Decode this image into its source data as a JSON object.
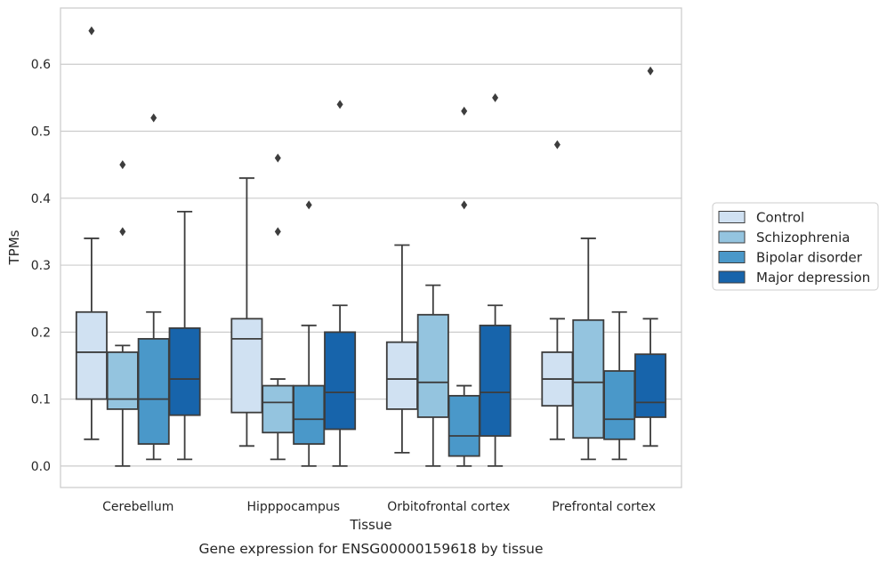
{
  "caption": "Gene expression for ENSG00000159618 by tissue",
  "chart_data": {
    "type": "box",
    "xlabel": "Tissue",
    "ylabel": "TPMs",
    "ylim": [
      -0.032,
      0.684
    ],
    "yticks": [
      0.0,
      0.1,
      0.2,
      0.3,
      0.4,
      0.5,
      0.6
    ],
    "ytick_labels": [
      "0.0",
      "0.1",
      "0.2",
      "0.3",
      "0.4",
      "0.5",
      "0.6"
    ],
    "grid": true,
    "legend_position": "right",
    "categories": [
      "Cerebellum",
      "Hipppocampus",
      "Orbitofrontal cortex",
      "Prefrontal cortex"
    ],
    "series": [
      {
        "name": "Control",
        "color": "#d0e1f2",
        "boxes": [
          {
            "whislo": 0.04,
            "q1": 0.1,
            "med": 0.17,
            "q3": 0.23,
            "whishi": 0.34,
            "fliers": [
              0.65
            ]
          },
          {
            "whislo": 0.03,
            "q1": 0.08,
            "med": 0.19,
            "q3": 0.22,
            "whishi": 0.43,
            "fliers": []
          },
          {
            "whislo": 0.02,
            "q1": 0.085,
            "med": 0.13,
            "q3": 0.185,
            "whishi": 0.33,
            "fliers": []
          },
          {
            "whislo": 0.04,
            "q1": 0.09,
            "med": 0.13,
            "q3": 0.17,
            "whishi": 0.22,
            "fliers": [
              0.48
            ]
          }
        ]
      },
      {
        "name": "Schizophrenia",
        "color": "#94c4df",
        "boxes": [
          {
            "whislo": 0.0,
            "q1": 0.085,
            "med": 0.1,
            "q3": 0.17,
            "whishi": 0.18,
            "fliers": [
              0.35,
              0.45
            ]
          },
          {
            "whislo": 0.01,
            "q1": 0.05,
            "med": 0.095,
            "q3": 0.12,
            "whishi": 0.13,
            "fliers": [
              0.35,
              0.46
            ]
          },
          {
            "whislo": 0.0,
            "q1": 0.073,
            "med": 0.125,
            "q3": 0.226,
            "whishi": 0.27,
            "fliers": []
          },
          {
            "whislo": 0.01,
            "q1": 0.042,
            "med": 0.125,
            "q3": 0.218,
            "whishi": 0.34,
            "fliers": []
          }
        ]
      },
      {
        "name": "Bipolar disorder",
        "color": "#4a98c9",
        "boxes": [
          {
            "whislo": 0.01,
            "q1": 0.033,
            "med": 0.1,
            "q3": 0.19,
            "whishi": 0.23,
            "fliers": [
              0.52
            ]
          },
          {
            "whislo": 0.0,
            "q1": 0.033,
            "med": 0.07,
            "q3": 0.12,
            "whishi": 0.21,
            "fliers": [
              0.39
            ]
          },
          {
            "whislo": 0.0,
            "q1": 0.015,
            "med": 0.045,
            "q3": 0.105,
            "whishi": 0.12,
            "fliers": [
              0.39,
              0.53
            ]
          },
          {
            "whislo": 0.01,
            "q1": 0.04,
            "med": 0.07,
            "q3": 0.142,
            "whishi": 0.23,
            "fliers": []
          }
        ]
      },
      {
        "name": "Major depression",
        "color": "#1764ab",
        "boxes": [
          {
            "whislo": 0.01,
            "q1": 0.076,
            "med": 0.13,
            "q3": 0.206,
            "whishi": 0.38,
            "fliers": []
          },
          {
            "whislo": 0.0,
            "q1": 0.055,
            "med": 0.11,
            "q3": 0.2,
            "whishi": 0.24,
            "fliers": [
              0.54
            ]
          },
          {
            "whislo": 0.0,
            "q1": 0.045,
            "med": 0.11,
            "q3": 0.21,
            "whishi": 0.24,
            "fliers": [
              0.55
            ]
          },
          {
            "whislo": 0.03,
            "q1": 0.073,
            "med": 0.095,
            "q3": 0.167,
            "whishi": 0.22,
            "fliers": [
              0.59
            ]
          }
        ]
      }
    ]
  }
}
